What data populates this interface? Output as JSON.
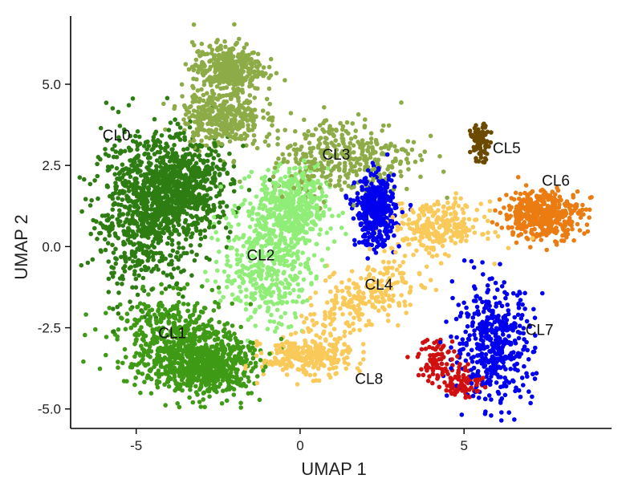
{
  "chart_data": {
    "type": "scatter",
    "title": "",
    "xlabel": "UMAP 1",
    "ylabel": "UMAP 2",
    "xlim": [
      -7,
      9.5
    ],
    "ylim": [
      -5.6,
      7.1
    ],
    "x_ticks": [
      {
        "value": -5,
        "label": "-5"
      },
      {
        "value": 0,
        "label": "0"
      },
      {
        "value": 5,
        "label": "5"
      }
    ],
    "y_ticks": [
      {
        "value": -5,
        "label": "-5.0"
      },
      {
        "value": -2.5,
        "label": "-2.5"
      },
      {
        "value": 0,
        "label": "0.0"
      },
      {
        "value": 2.5,
        "label": "2.5"
      },
      {
        "value": 5,
        "label": "5.0"
      }
    ],
    "grid": false,
    "legend": "none",
    "clusters": [
      {
        "name": "CL0",
        "color": "#2e7d12",
        "label_at": [
          -5.6,
          3.4
        ],
        "n": 1400,
        "blobs": [
          {
            "cx": -4.8,
            "cy": 1.0,
            "sx": 1.0,
            "sy": 1.6
          },
          {
            "cx": -3.6,
            "cy": 1.8,
            "sx": 1.0,
            "sy": 1.0
          }
        ]
      },
      {
        "name": "CL1",
        "color": "#3f9a16",
        "label_at": [
          -3.9,
          -2.7
        ],
        "n": 1100,
        "blobs": [
          {
            "cx": -3.8,
            "cy": -2.9,
            "sx": 1.2,
            "sy": 0.9
          },
          {
            "cx": -2.8,
            "cy": -3.7,
            "sx": 0.9,
            "sy": 0.6
          }
        ]
      },
      {
        "name": "CL2",
        "color": "#90ee78",
        "label_at": [
          -1.2,
          -0.3
        ],
        "n": 900,
        "blobs": [
          {
            "cx": -1.0,
            "cy": -0.4,
            "sx": 0.9,
            "sy": 1.3
          },
          {
            "cx": -0.2,
            "cy": 1.2,
            "sx": 0.7,
            "sy": 0.8
          }
        ]
      },
      {
        "name": "CL3",
        "color": "#8dac48",
        "label_at": [
          1.1,
          2.8
        ],
        "n": 1100,
        "blobs": [
          {
            "cx": 1.3,
            "cy": 2.8,
            "sx": 1.5,
            "sy": 0.8
          },
          {
            "cx": -2.2,
            "cy": 5.5,
            "sx": 0.7,
            "sy": 0.5
          },
          {
            "cx": -2.4,
            "cy": 4.0,
            "sx": 0.8,
            "sy": 0.6
          }
        ]
      },
      {
        "name": "CL4",
        "color": "#f9c95a",
        "label_at": [
          2.4,
          -1.2
        ],
        "n": 800,
        "blobs": [
          {
            "cx": 2.0,
            "cy": -1.6,
            "sx": 1.5,
            "sy": 0.6,
            "angle": 32
          },
          {
            "cx": 4.2,
            "cy": 0.6,
            "sx": 0.9,
            "sy": 0.5
          },
          {
            "cx": 0.2,
            "cy": -3.4,
            "sx": 0.9,
            "sy": 0.4
          }
        ]
      },
      {
        "name": "CL5",
        "color": "#6b4a00",
        "label_at": [
          6.3,
          3.0
        ],
        "n": 80,
        "blobs": [
          {
            "cx": 5.5,
            "cy": 3.2,
            "sx": 0.2,
            "sy": 0.35
          }
        ]
      },
      {
        "name": "CL6",
        "color": "#ea7c12",
        "label_at": [
          7.8,
          2.0
        ],
        "n": 450,
        "blobs": [
          {
            "cx": 7.4,
            "cy": 1.0,
            "sx": 0.8,
            "sy": 0.5
          }
        ]
      },
      {
        "name": "CL7",
        "color": "#0000ee",
        "label_at": [
          7.3,
          -2.6
        ],
        "n": 900,
        "blobs": [
          {
            "cx": 5.9,
            "cy": -3.0,
            "sx": 0.8,
            "sy": 1.2
          },
          {
            "cx": 2.3,
            "cy": 1.1,
            "sx": 0.4,
            "sy": 0.7
          }
        ]
      },
      {
        "name": "CL8",
        "color": "#d01010",
        "label_at": [
          2.1,
          -4.1
        ],
        "n": 160,
        "blobs": [
          {
            "cx": 4.2,
            "cy": -3.5,
            "sx": 0.4,
            "sy": 0.5
          },
          {
            "cx": 5.0,
            "cy": -4.2,
            "sx": 0.4,
            "sy": 0.3
          }
        ]
      }
    ]
  }
}
